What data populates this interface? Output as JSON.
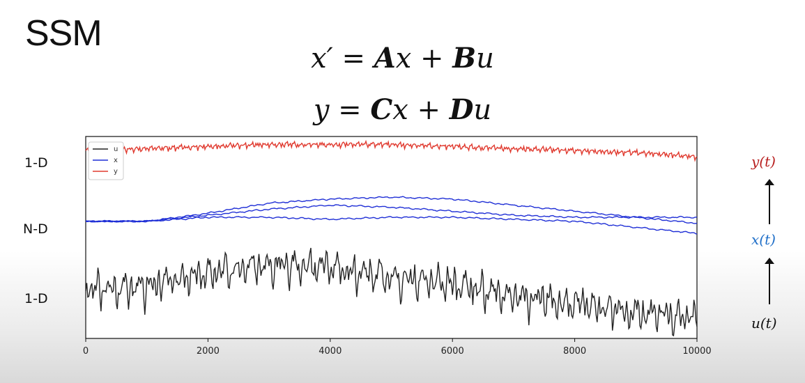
{
  "slide": {
    "title": "SSM",
    "eq1": {
      "lhs": "x′",
      "eq": " = ",
      "a": "A",
      "x": "x",
      "plus": " + ",
      "b": "B",
      "u": "u"
    },
    "eq2": {
      "lhs": "y",
      "eq": " = ",
      "c": "C",
      "x": "x",
      "plus": " + ",
      "d": "D",
      "u": "u"
    },
    "row_labels": {
      "top": "1-D",
      "middle": "N-D",
      "bottom": "1-D"
    },
    "signals": {
      "y": "y(t)",
      "x": "x(t)",
      "u": "u(t)"
    },
    "colors": {
      "u": "#222222",
      "x": "#1f2fd6",
      "y": "#e03a2f",
      "y_label": "#b81f1f",
      "x_label": "#1f6fc8",
      "u_label": "#111111"
    }
  },
  "chart_data": {
    "type": "line",
    "xlim": [
      0,
      10000
    ],
    "x_ticks": [
      "0",
      "2000",
      "4000",
      "6000",
      "8000",
      "10000"
    ],
    "legend": [
      "u",
      "x",
      "y"
    ],
    "legend_position": "top-left",
    "grid": false,
    "series": [
      {
        "name": "y",
        "x": [
          0,
          1000,
          2000,
          3000,
          4000,
          5000,
          6000,
          7000,
          8000,
          9000,
          10000
        ],
        "values": [
          0.93,
          0.94,
          0.95,
          0.96,
          0.96,
          0.96,
          0.95,
          0.94,
          0.93,
          0.92,
          0.9
        ]
      },
      {
        "name": "x",
        "x": [
          0,
          1000,
          2000,
          3000,
          4000,
          5000,
          6000,
          7000,
          8000,
          9000,
          10000
        ],
        "values": [
          0.58,
          0.58,
          0.62,
          0.67,
          0.69,
          0.7,
          0.69,
          0.66,
          0.63,
          0.6,
          0.57
        ]
      },
      {
        "name": "x",
        "x": [
          0,
          1000,
          2000,
          3000,
          4000,
          5000,
          6000,
          7000,
          8000,
          9000,
          10000
        ],
        "values": [
          0.58,
          0.58,
          0.61,
          0.64,
          0.66,
          0.65,
          0.63,
          0.61,
          0.6,
          0.6,
          0.6
        ]
      },
      {
        "name": "x",
        "x": [
          0,
          1000,
          2000,
          3000,
          4000,
          5000,
          6000,
          7000,
          8000,
          9000,
          10000
        ],
        "values": [
          0.58,
          0.58,
          0.6,
          0.6,
          0.59,
          0.6,
          0.6,
          0.59,
          0.58,
          0.55,
          0.52
        ]
      },
      {
        "name": "u",
        "x": [
          0,
          1000,
          2000,
          3000,
          4000,
          5000,
          6000,
          7000,
          8000,
          9000,
          10000
        ],
        "values": [
          0.24,
          0.26,
          0.33,
          0.36,
          0.35,
          0.3,
          0.27,
          0.21,
          0.17,
          0.13,
          0.1
        ]
      }
    ]
  }
}
